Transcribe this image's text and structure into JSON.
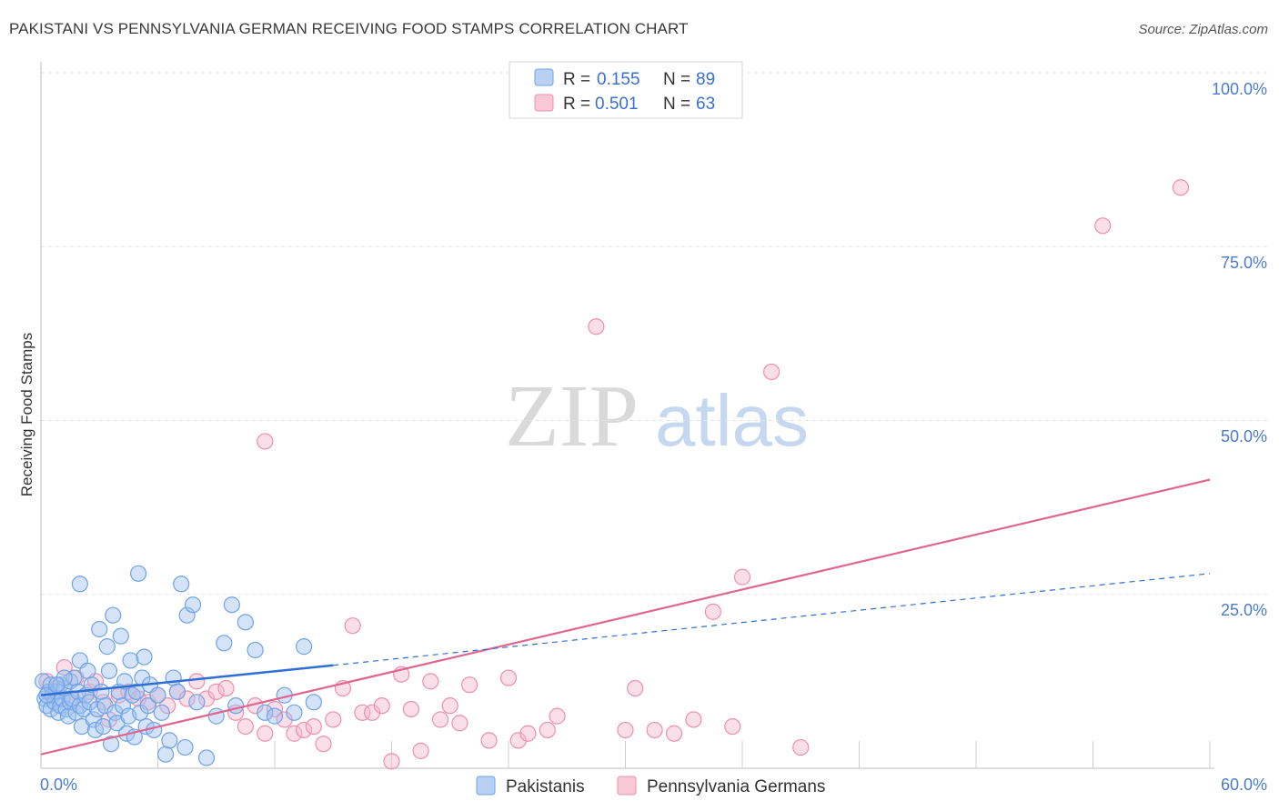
{
  "header": {
    "title": "PAKISTANI VS PENNSYLVANIA GERMAN RECEIVING FOOD STAMPS CORRELATION CHART",
    "source": "Source: ZipAtlas.com"
  },
  "watermark": {
    "zip": "ZIP",
    "atlas": "atlas"
  },
  "chart_data": {
    "type": "scatter",
    "title": "PAKISTANI VS PENNSYLVANIA GERMAN RECEIVING FOOD STAMPS CORRELATION CHART",
    "ylabel": "Receiving Food Stamps",
    "xlabel": "",
    "xlim": [
      0,
      60
    ],
    "ylim": [
      0,
      100
    ],
    "x_tick_labels": [
      "0.0%",
      "60.0%"
    ],
    "y_tick_labels": [
      "100.0%",
      "75.0%",
      "50.0%",
      "25.0%"
    ],
    "y_ticks": [
      100,
      75,
      50,
      25
    ],
    "grid": true,
    "legend_placement": "top-center",
    "legend": [
      {
        "name": "Pakistanis",
        "r_label": "R =",
        "r": "0.155",
        "n_label": "N =",
        "n": "89",
        "color": "#6fa3e6"
      },
      {
        "name": "Pennsylvania Germans",
        "r_label": "R =",
        "r": "0.501",
        "n_label": "N =",
        "n": "63",
        "color": "#ee8fad"
      }
    ],
    "series": [
      {
        "name": "Pakistanis",
        "color": "#6fa3e6",
        "line_color": "#2e6fd4",
        "trend": {
          "solid": [
            [
              0,
              10.5
            ],
            [
              15,
              14.8
            ]
          ],
          "dashed": [
            [
              15,
              14.8
            ],
            [
              60,
              28
            ]
          ]
        },
        "points": [
          [
            0.1,
            12.5
          ],
          [
            0.2,
            10
          ],
          [
            0.3,
            9
          ],
          [
            0.4,
            11
          ],
          [
            0.5,
            12
          ],
          [
            0.5,
            8.5
          ],
          [
            0.6,
            10.5
          ],
          [
            0.7,
            9.5
          ],
          [
            0.8,
            11
          ],
          [
            0.9,
            8
          ],
          [
            1.0,
            12
          ],
          [
            1.0,
            9
          ],
          [
            1.1,
            10
          ],
          [
            1.2,
            11.5
          ],
          [
            1.3,
            8.5
          ],
          [
            1.4,
            7.5
          ],
          [
            1.5,
            12.5
          ],
          [
            1.5,
            9.5
          ],
          [
            1.6,
            10
          ],
          [
            1.7,
            13
          ],
          [
            1.8,
            8
          ],
          [
            1.9,
            11
          ],
          [
            2.0,
            9
          ],
          [
            2.0,
            15.5
          ],
          [
            2.1,
            6
          ],
          [
            2.2,
            8.5
          ],
          [
            2.3,
            10.5
          ],
          [
            2.4,
            14
          ],
          [
            2.5,
            9.5
          ],
          [
            2.6,
            12
          ],
          [
            2.7,
            7
          ],
          [
            2.8,
            5.5
          ],
          [
            2.9,
            8.5
          ],
          [
            3.0,
            20
          ],
          [
            3.1,
            11
          ],
          [
            3.2,
            6
          ],
          [
            3.3,
            9
          ],
          [
            3.4,
            17.5
          ],
          [
            3.5,
            14
          ],
          [
            3.6,
            3.5
          ],
          [
            3.7,
            22
          ],
          [
            3.8,
            8
          ],
          [
            3.9,
            6.5
          ],
          [
            4.0,
            11
          ],
          [
            4.1,
            19
          ],
          [
            4.2,
            9
          ],
          [
            4.3,
            12.5
          ],
          [
            4.4,
            5
          ],
          [
            4.5,
            7.5
          ],
          [
            4.6,
            15.5
          ],
          [
            4.7,
            10.5
          ],
          [
            4.8,
            4.5
          ],
          [
            4.9,
            11
          ],
          [
            5.0,
            28
          ],
          [
            5.1,
            8
          ],
          [
            5.2,
            13
          ],
          [
            5.3,
            16
          ],
          [
            5.4,
            6
          ],
          [
            5.5,
            9
          ],
          [
            5.6,
            12
          ],
          [
            5.8,
            5.5
          ],
          [
            6.0,
            10.5
          ],
          [
            6.2,
            8
          ],
          [
            6.4,
            2
          ],
          [
            6.6,
            4
          ],
          [
            6.8,
            13
          ],
          [
            7.0,
            11
          ],
          [
            7.2,
            26.5
          ],
          [
            7.4,
            3
          ],
          [
            7.5,
            22
          ],
          [
            7.8,
            23.5
          ],
          [
            8.0,
            9.5
          ],
          [
            8.5,
            1.5
          ],
          [
            9.0,
            7.5
          ],
          [
            9.4,
            18
          ],
          [
            9.8,
            23.5
          ],
          [
            10.0,
            9
          ],
          [
            10.5,
            21
          ],
          [
            11.0,
            17
          ],
          [
            11.5,
            8
          ],
          [
            12.0,
            7.5
          ],
          [
            12.5,
            10.5
          ],
          [
            13.0,
            8
          ],
          [
            13.5,
            17.5
          ],
          [
            14.0,
            9.5
          ],
          [
            2.0,
            26.5
          ],
          [
            0.3,
            10.5
          ],
          [
            1.2,
            13
          ],
          [
            0.8,
            12
          ]
        ]
      },
      {
        "name": "Pennsylvania Germans",
        "color": "#ee8fad",
        "line_color": "#e06590",
        "trend": {
          "solid": [
            [
              0,
              2
            ],
            [
              60,
              41.5
            ]
          ]
        },
        "points": [
          [
            0.3,
            12.5
          ],
          [
            0.8,
            11.5
          ],
          [
            1.2,
            14.5
          ],
          [
            1.5,
            10
          ],
          [
            1.8,
            13
          ],
          [
            2.5,
            11
          ],
          [
            2.8,
            12.5
          ],
          [
            3.2,
            9.5
          ],
          [
            3.5,
            7
          ],
          [
            4.0,
            10.5
          ],
          [
            4.5,
            11
          ],
          [
            5.0,
            10
          ],
          [
            5.5,
            9.5
          ],
          [
            6.0,
            10.5
          ],
          [
            6.5,
            9
          ],
          [
            7.0,
            11
          ],
          [
            7.5,
            10
          ],
          [
            8.0,
            12.5
          ],
          [
            8.5,
            10
          ],
          [
            9.0,
            11
          ],
          [
            9.5,
            11.5
          ],
          [
            10.0,
            8
          ],
          [
            10.5,
            6
          ],
          [
            11.0,
            9
          ],
          [
            11.5,
            5
          ],
          [
            12.0,
            8.5
          ],
          [
            12.5,
            7
          ],
          [
            13.0,
            5
          ],
          [
            13.5,
            5.5
          ],
          [
            14.0,
            6
          ],
          [
            14.5,
            3.5
          ],
          [
            15.0,
            7
          ],
          [
            15.5,
            11.5
          ],
          [
            16.0,
            20.5
          ],
          [
            16.5,
            8
          ],
          [
            17.0,
            8
          ],
          [
            17.5,
            9
          ],
          [
            18.0,
            1
          ],
          [
            18.5,
            13.5
          ],
          [
            19.0,
            8.5
          ],
          [
            19.5,
            2.5
          ],
          [
            20.0,
            12.5
          ],
          [
            20.5,
            7
          ],
          [
            21.0,
            9
          ],
          [
            21.5,
            6.5
          ],
          [
            22.0,
            12
          ],
          [
            23.0,
            4
          ],
          [
            24.0,
            13
          ],
          [
            24.5,
            4
          ],
          [
            25.0,
            5
          ],
          [
            26.0,
            5.5
          ],
          [
            26.5,
            7.5
          ],
          [
            28.5,
            63.5
          ],
          [
            30.0,
            5.5
          ],
          [
            30.5,
            11.5
          ],
          [
            31.5,
            5.5
          ],
          [
            32.5,
            5
          ],
          [
            33.5,
            7
          ],
          [
            34.5,
            22.5
          ],
          [
            35.5,
            6
          ],
          [
            36.0,
            27.5
          ],
          [
            37.5,
            57
          ],
          [
            39.0,
            3
          ]
        ],
        "outliers": [
          [
            11.5,
            47
          ],
          [
            54.5,
            78
          ],
          [
            58.5,
            83.5
          ]
        ]
      }
    ]
  }
}
